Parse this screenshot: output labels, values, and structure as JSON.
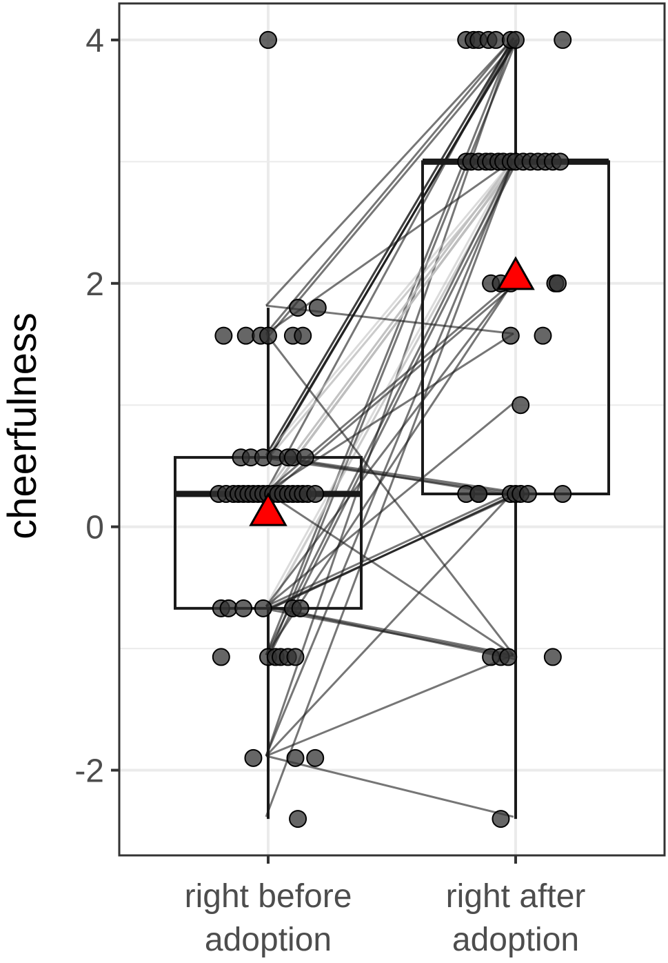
{
  "chart_data": {
    "type": "box",
    "title": "",
    "xlabel": "",
    "ylabel": "cheerfulness",
    "ylim": [
      -2.7,
      4.3
    ],
    "y_ticks": [
      "-2",
      "0",
      "2",
      "4"
    ],
    "y_tick_values": [
      -2,
      0,
      2,
      4
    ],
    "grid": true,
    "categories": [
      {
        "line1": "right before",
        "line2": "adoption"
      },
      {
        "line1": "right after",
        "line2": "adoption"
      }
    ],
    "boxes": [
      {
        "whisker_low": -2.4,
        "q1": -0.67,
        "median": 0.27,
        "q3": 0.57,
        "whisker_high": 1.8,
        "mean": 0.13
      },
      {
        "whisker_low": -2.4,
        "q1": 0.27,
        "median": 3.0,
        "q3": 3.0,
        "whisker_high": 4.0,
        "mean": 2.07
      }
    ],
    "points_before": [
      {
        "y": 4.0,
        "dx": 0
      },
      {
        "y": 1.8,
        "dx": 0.12
      },
      {
        "y": 1.8,
        "dx": 0.2
      },
      {
        "y": 1.57,
        "dx": -0.18
      },
      {
        "y": 1.57,
        "dx": -0.09
      },
      {
        "y": 1.57,
        "dx": -0.03
      },
      {
        "y": 1.57,
        "dx": 0.0
      },
      {
        "y": 1.57,
        "dx": 0.1
      },
      {
        "y": 1.57,
        "dx": 0.14
      },
      {
        "y": 0.57,
        "dx": -0.11
      },
      {
        "y": 0.57,
        "dx": -0.07
      },
      {
        "y": 0.57,
        "dx": -0.02
      },
      {
        "y": 0.57,
        "dx": 0.03
      },
      {
        "y": 0.57,
        "dx": 0.08
      },
      {
        "y": 0.57,
        "dx": 0.1
      },
      {
        "y": 0.57,
        "dx": 0.15
      },
      {
        "y": 0.27,
        "dx": -0.2
      },
      {
        "y": 0.27,
        "dx": -0.17
      },
      {
        "y": 0.27,
        "dx": -0.14
      },
      {
        "y": 0.27,
        "dx": -0.12
      },
      {
        "y": 0.27,
        "dx": -0.1
      },
      {
        "y": 0.27,
        "dx": -0.08
      },
      {
        "y": 0.27,
        "dx": -0.06
      },
      {
        "y": 0.27,
        "dx": -0.04
      },
      {
        "y": 0.27,
        "dx": -0.02
      },
      {
        "y": 0.27,
        "dx": 0.0
      },
      {
        "y": 0.27,
        "dx": 0.02
      },
      {
        "y": 0.27,
        "dx": 0.04
      },
      {
        "y": 0.27,
        "dx": 0.06
      },
      {
        "y": 0.27,
        "dx": 0.08
      },
      {
        "y": 0.27,
        "dx": 0.1
      },
      {
        "y": 0.27,
        "dx": 0.12
      },
      {
        "y": 0.27,
        "dx": 0.14
      },
      {
        "y": 0.27,
        "dx": 0.16
      },
      {
        "y": 0.27,
        "dx": 0.19
      },
      {
        "y": -0.67,
        "dx": -0.19
      },
      {
        "y": -0.67,
        "dx": -0.16
      },
      {
        "y": -0.67,
        "dx": -0.1
      },
      {
        "y": -0.67,
        "dx": -0.02
      },
      {
        "y": -0.67,
        "dx": 0.1
      },
      {
        "y": -0.67,
        "dx": 0.13
      },
      {
        "y": -1.07,
        "dx": -0.19
      },
      {
        "y": -1.07,
        "dx": 0.0
      },
      {
        "y": -1.07,
        "dx": 0.03
      },
      {
        "y": -1.07,
        "dx": 0.05
      },
      {
        "y": -1.07,
        "dx": 0.08
      },
      {
        "y": -1.07,
        "dx": 0.11
      },
      {
        "y": -1.9,
        "dx": -0.06
      },
      {
        "y": -1.9,
        "dx": 0.11
      },
      {
        "y": -1.9,
        "dx": 0.19
      },
      {
        "y": -2.4,
        "dx": 0.12
      }
    ],
    "points_after": [
      {
        "y": 4.0,
        "dx": -0.2
      },
      {
        "y": 4.0,
        "dx": -0.17
      },
      {
        "y": 4.0,
        "dx": -0.15
      },
      {
        "y": 4.0,
        "dx": -0.11
      },
      {
        "y": 4.0,
        "dx": -0.08
      },
      {
        "y": 4.0,
        "dx": -0.02
      },
      {
        "y": 4.0,
        "dx": 0.0
      },
      {
        "y": 4.0,
        "dx": 0.19
      },
      {
        "y": 3.0,
        "dx": -0.2
      },
      {
        "y": 3.0,
        "dx": -0.18
      },
      {
        "y": 3.0,
        "dx": -0.15
      },
      {
        "y": 3.0,
        "dx": -0.12
      },
      {
        "y": 3.0,
        "dx": -0.1
      },
      {
        "y": 3.0,
        "dx": -0.07
      },
      {
        "y": 3.0,
        "dx": -0.05
      },
      {
        "y": 3.0,
        "dx": -0.02
      },
      {
        "y": 3.0,
        "dx": 0.0
      },
      {
        "y": 3.0,
        "dx": 0.03
      },
      {
        "y": 3.0,
        "dx": 0.06
      },
      {
        "y": 3.0,
        "dx": 0.09
      },
      {
        "y": 3.0,
        "dx": 0.12
      },
      {
        "y": 3.0,
        "dx": 0.15
      },
      {
        "y": 3.0,
        "dx": 0.18
      },
      {
        "y": 2.0,
        "dx": -0.1
      },
      {
        "y": 2.0,
        "dx": -0.06
      },
      {
        "y": 2.0,
        "dx": -0.02
      },
      {
        "y": 2.0,
        "dx": 0.16
      },
      {
        "y": 2.0,
        "dx": 0.17
      },
      {
        "y": 1.57,
        "dx": -0.02
      },
      {
        "y": 1.57,
        "dx": 0.11
      },
      {
        "y": 1.0,
        "dx": 0.02
      },
      {
        "y": 0.27,
        "dx": -0.2
      },
      {
        "y": 0.27,
        "dx": -0.15
      },
      {
        "y": 0.27,
        "dx": -0.15
      },
      {
        "y": 0.27,
        "dx": -0.02
      },
      {
        "y": 0.27,
        "dx": 0.0
      },
      {
        "y": 0.27,
        "dx": 0.02
      },
      {
        "y": 0.27,
        "dx": 0.05
      },
      {
        "y": 0.27,
        "dx": 0.19
      },
      {
        "y": -1.07,
        "dx": -0.1
      },
      {
        "y": -1.07,
        "dx": -0.06
      },
      {
        "y": -1.07,
        "dx": -0.03
      },
      {
        "y": -1.07,
        "dx": 0.15
      },
      {
        "y": -2.4,
        "dx": -0.06
      }
    ],
    "pairs": [
      {
        "from": 0.57,
        "to": 4.0,
        "count": 6
      },
      {
        "from": 1.57,
        "to": 4.0,
        "count": 2
      },
      {
        "from": 1.8,
        "to": 4.0,
        "count": 1
      },
      {
        "from": 0.27,
        "to": 4.0,
        "count": 1
      },
      {
        "from": -1.07,
        "to": 4.0,
        "count": 2
      },
      {
        "from": -1.9,
        "to": 4.0,
        "count": 1
      },
      {
        "from": 0.27,
        "to": 3.0,
        "count": 12
      },
      {
        "from": 0.57,
        "to": 3.0,
        "count": 3
      },
      {
        "from": 1.57,
        "to": 3.0,
        "count": 1
      },
      {
        "from": -0.67,
        "to": 3.0,
        "count": 3
      },
      {
        "from": -1.07,
        "to": 3.0,
        "count": 2
      },
      {
        "from": -1.9,
        "to": 3.0,
        "count": 1
      },
      {
        "from": -2.4,
        "to": 3.0,
        "count": 1
      },
      {
        "from": 0.27,
        "to": 2.0,
        "count": 2
      },
      {
        "from": -0.67,
        "to": 2.0,
        "count": 1
      },
      {
        "from": -1.07,
        "to": 2.0,
        "count": 1
      },
      {
        "from": 1.8,
        "to": 1.57,
        "count": 1
      },
      {
        "from": 0.27,
        "to": 1.57,
        "count": 1
      },
      {
        "from": -0.67,
        "to": 1.0,
        "count": 1
      },
      {
        "from": 0.57,
        "to": 0.27,
        "count": 3
      },
      {
        "from": -0.67,
        "to": 0.27,
        "count": 4
      },
      {
        "from": -1.9,
        "to": 0.27,
        "count": 1
      },
      {
        "from": 1.57,
        "to": -1.07,
        "count": 1
      },
      {
        "from": 0.27,
        "to": -1.07,
        "count": 1
      },
      {
        "from": -0.67,
        "to": -1.07,
        "count": 3
      },
      {
        "from": -1.9,
        "to": -1.07,
        "count": 1
      },
      {
        "from": -1.9,
        "to": -2.4,
        "count": 1
      }
    ],
    "colors": {
      "panel_border": "#333333",
      "grid": "#ebebeb",
      "box_line": "#1a1a1a",
      "point_fill": "#333333",
      "pair_dark": "#1a1a1a",
      "pair_light": "#bdbdbd",
      "mean_marker": "#ff0000",
      "tick_text": "#4d4d4d",
      "ylabel": "#000000"
    }
  }
}
